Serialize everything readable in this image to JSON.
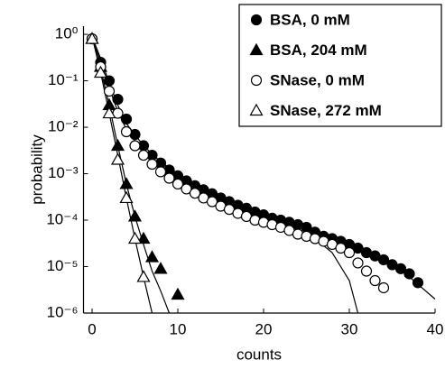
{
  "chart_data": {
    "type": "scatter",
    "xlabel": "counts",
    "ylabel": "probability",
    "xlim": [
      -1,
      40
    ],
    "xticks": [
      0,
      10,
      20,
      30,
      40
    ],
    "ylim": [
      1e-06,
      1.5
    ],
    "log_y": true,
    "yticks": [
      {
        "value": 1,
        "label": "10⁰"
      },
      {
        "value": 0.1,
        "label": "10⁻¹"
      },
      {
        "value": 0.01,
        "label": "10⁻²"
      },
      {
        "value": 0.001,
        "label": "10⁻³"
      },
      {
        "value": 0.0001,
        "label": "10⁻⁴"
      },
      {
        "value": 1e-05,
        "label": "10⁻⁵"
      },
      {
        "value": 1e-06,
        "label": "10⁻⁶"
      }
    ],
    "legend": "upper right",
    "series": [
      {
        "name": "BSA, 0 mM",
        "marker": "circle",
        "filled": true,
        "color": "#000000",
        "x": [
          0,
          1,
          2,
          3,
          4,
          5,
          6,
          7,
          8,
          9,
          10,
          11,
          12,
          13,
          14,
          15,
          16,
          17,
          18,
          19,
          20,
          21,
          22,
          23,
          24,
          25,
          26,
          27,
          28,
          29,
          30,
          31,
          32,
          33,
          34,
          35,
          36,
          37,
          38
        ],
        "values": [
          0.8,
          0.25,
          0.1,
          0.04,
          0.015,
          0.007,
          0.004,
          0.0025,
          0.0017,
          0.0012,
          0.0009,
          0.0007,
          0.00055,
          0.00045,
          0.00037,
          0.0003,
          0.00025,
          0.00021,
          0.00018,
          0.00015,
          0.00013,
          0.00011,
          0.0001,
          9e-05,
          8e-05,
          7e-05,
          5.5e-05,
          4.5e-05,
          4e-05,
          3.5e-05,
          3e-05,
          2.5e-05,
          2e-05,
          1.7e-05,
          1.4e-05,
          1.1e-05,
          9e-06,
          7e-06,
          4.5e-06
        ]
      },
      {
        "name": "BSA, 204 mM",
        "marker": "triangle",
        "filled": true,
        "color": "#000000",
        "x": [
          0,
          1,
          2,
          3,
          4,
          5,
          6,
          7,
          8,
          10
        ],
        "values": [
          0.8,
          0.2,
          0.03,
          0.004,
          0.0006,
          0.00012,
          4e-05,
          1.6e-05,
          9e-06,
          2.5e-06
        ]
      },
      {
        "name": "SNase, 0 mM",
        "marker": "circle",
        "filled": false,
        "color": "#000000",
        "x": [
          0,
          1,
          2,
          3,
          4,
          5,
          6,
          7,
          8,
          9,
          10,
          11,
          12,
          13,
          14,
          15,
          16,
          17,
          18,
          19,
          20,
          21,
          22,
          23,
          24,
          25,
          26,
          27,
          28,
          29,
          30,
          31,
          32,
          33,
          34
        ],
        "values": [
          0.8,
          0.2,
          0.06,
          0.02,
          0.008,
          0.004,
          0.0025,
          0.0016,
          0.0011,
          0.0008,
          0.0006,
          0.00047,
          0.00038,
          0.0003,
          0.00025,
          0.0002,
          0.00017,
          0.00014,
          0.00012,
          0.0001,
          9e-05,
          8e-05,
          7e-05,
          6e-05,
          5e-05,
          4.5e-05,
          4e-05,
          3.5e-05,
          3e-05,
          2.5e-05,
          2e-05,
          1.2e-05,
          8e-06,
          5e-06,
          3.5e-06
        ]
      },
      {
        "name": "SNase, 272 mM",
        "marker": "triangle",
        "filled": false,
        "color": "#000000",
        "x": [
          0,
          1,
          2,
          3,
          4,
          5,
          6
        ],
        "values": [
          0.8,
          0.15,
          0.02,
          0.002,
          0.0003,
          4e-05,
          6e-06
        ]
      }
    ],
    "fits": [
      {
        "color": "#000000",
        "x": [
          0,
          1,
          2,
          3,
          4,
          6,
          8,
          10,
          14,
          18,
          22,
          26,
          30,
          34,
          37,
          40
        ],
        "values": [
          0.9,
          0.3,
          0.09,
          0.03,
          0.012,
          0.004,
          0.0018,
          0.001,
          0.0004,
          0.0002,
          0.0001,
          6e-05,
          3.5e-05,
          1.5e-05,
          6e-06,
          2e-06
        ]
      },
      {
        "color": "#000000",
        "x": [
          0,
          1,
          2,
          3,
          4,
          5,
          6,
          7,
          8,
          9
        ],
        "values": [
          0.9,
          0.18,
          0.03,
          0.004,
          0.0006,
          0.00012,
          3e-05,
          8e-06,
          3e-06,
          1e-06
        ]
      },
      {
        "color": "#000000",
        "x": [
          0,
          1,
          2,
          3,
          4,
          6,
          8,
          10,
          14,
          18,
          22,
          26,
          28,
          30,
          31
        ],
        "values": [
          0.9,
          0.25,
          0.07,
          0.022,
          0.009,
          0.0028,
          0.0012,
          0.0006,
          0.00025,
          0.00012,
          7e-05,
          4e-05,
          2e-05,
          5e-06,
          1e-06
        ]
      },
      {
        "color": "#000000",
        "x": [
          0,
          1,
          2,
          3,
          4,
          5,
          6,
          7
        ],
        "values": [
          0.9,
          0.15,
          0.02,
          0.0025,
          0.0003,
          4e-05,
          6e-06,
          1e-06
        ]
      }
    ]
  }
}
